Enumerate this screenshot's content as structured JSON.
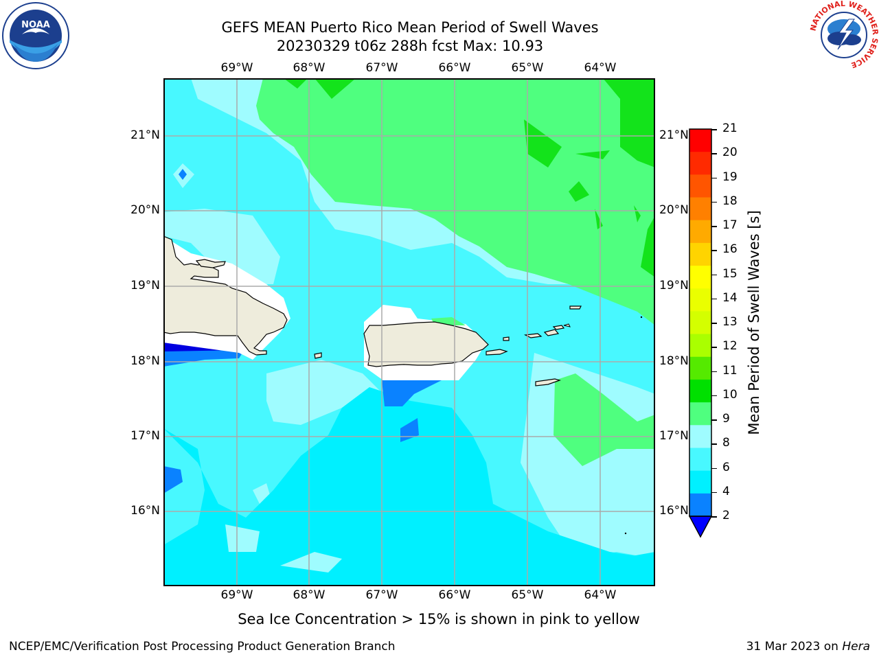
{
  "header": {
    "title_line1": "GEFS MEAN Puerto Rico Mean Period of Swell Waves",
    "title_line2": "20230329 t06z 288h fcst   Max: 10.93"
  },
  "map": {
    "lon_labels": [
      "69°W",
      "68°W",
      "67°W",
      "66°W",
      "65°W",
      "64°W"
    ],
    "lat_labels": [
      "21°N",
      "20°N",
      "19°N",
      "18°N",
      "17°N",
      "16°N"
    ],
    "colors": {
      "land": "#eeecdc",
      "swell_2_4": "#0a82ff",
      "swell_4_6": "#00f0ff",
      "swell_6_8": "#48f8ff",
      "swell_8_9": "#9ffcff",
      "swell_9_10": "#4fff7f",
      "swell_10_11": "#13e31b",
      "deep_blue": "#0000e0",
      "gridline": "#aaaaaa"
    }
  },
  "colorbar": {
    "label": "Mean Period of Swell Waves [s]",
    "ticks": [
      "21",
      "20",
      "19",
      "18",
      "17",
      "16",
      "15",
      "14",
      "13",
      "12",
      "11",
      "10",
      "9",
      "8",
      "6",
      "4",
      "2"
    ],
    "band_colors": [
      "#ff0000",
      "#ff2a00",
      "#ff5500",
      "#ff8000",
      "#ffaa00",
      "#ffd400",
      "#ffff00",
      "#eaff00",
      "#d4ff00",
      "#aaff00",
      "#55ea00",
      "#00e000",
      "#4fff7f",
      "#9ffcff",
      "#48f8ff",
      "#00f0ff",
      "#0a82ff"
    ],
    "under_color": "#0000ff"
  },
  "notes": {
    "ice": "Sea Ice Concentration > 15% is shown in pink to yellow"
  },
  "footer": {
    "left": "NCEP/EMC/Verification Post Processing Product Generation Branch",
    "date": "31 Mar 2023 on ",
    "system": "Hera"
  },
  "logos": {
    "noaa_text": "NOAA",
    "nws_ring": "NATIONAL WEATHER SERVICE"
  }
}
